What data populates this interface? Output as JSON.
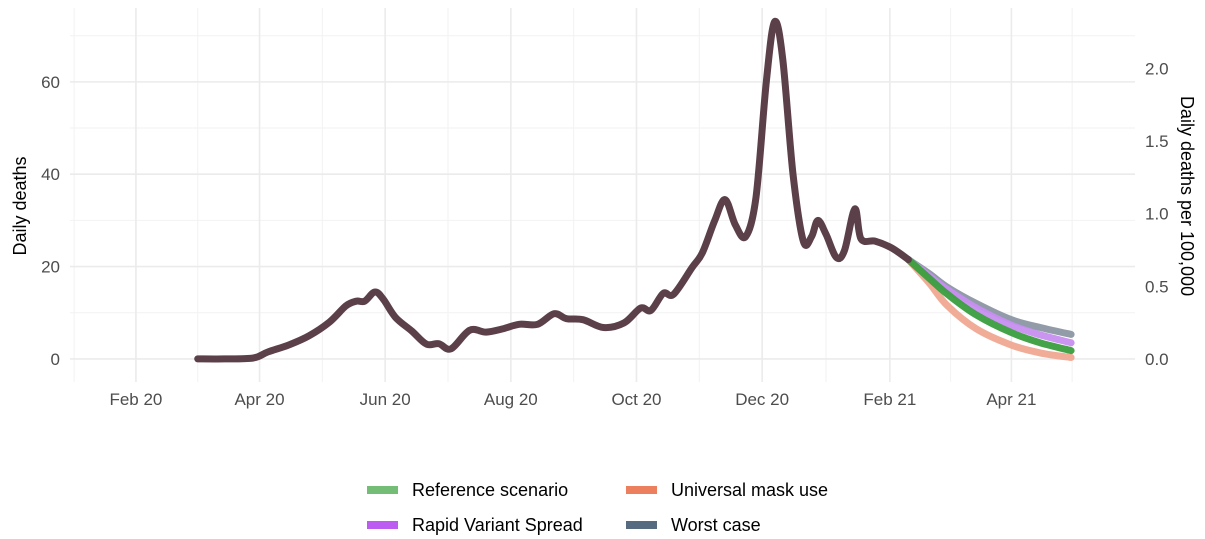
{
  "chart_data": {
    "type": "line",
    "xlabel": "",
    "ylabel": "Daily deaths",
    "y2label": "Daily deaths per 100,000",
    "ylim": [
      -5,
      76
    ],
    "y2_ratio": 31.45,
    "x_ticks": [
      {
        "date": "2020-02-01",
        "label": "Feb 20"
      },
      {
        "date": "2020-04-01",
        "label": "Apr 20"
      },
      {
        "date": "2020-06-01",
        "label": "Jun 20"
      },
      {
        "date": "2020-08-01",
        "label": "Aug 20"
      },
      {
        "date": "2020-10-01",
        "label": "Oct 20"
      },
      {
        "date": "2020-12-01",
        "label": "Dec 20"
      },
      {
        "date": "2021-02-01",
        "label": "Feb 21"
      },
      {
        "date": "2021-04-01",
        "label": "Apr 21"
      }
    ],
    "x_range": [
      "2019-12-31",
      "2021-05-31"
    ],
    "y_ticks": [
      0,
      20,
      40,
      60
    ],
    "y2_ticks": [
      {
        "value": 0.0,
        "label": "0.0"
      },
      {
        "value": 0.5,
        "label": "0.5"
      },
      {
        "value": 1.0,
        "label": "1.0"
      },
      {
        "value": 1.5,
        "label": "1.5"
      },
      {
        "value": 2.0,
        "label": "2.0"
      }
    ],
    "grid": true,
    "legend_position": "bottom",
    "history": {
      "color": "#5c4049",
      "points": [
        [
          "2020-03-02",
          0
        ],
        [
          "2020-03-15",
          0
        ],
        [
          "2020-03-29",
          0.2
        ],
        [
          "2020-04-05",
          1.5
        ],
        [
          "2020-04-15",
          3
        ],
        [
          "2020-04-25",
          5
        ],
        [
          "2020-05-05",
          8
        ],
        [
          "2020-05-13",
          11.5
        ],
        [
          "2020-05-18",
          12.5
        ],
        [
          "2020-05-22",
          12.5
        ],
        [
          "2020-05-27",
          14.5
        ],
        [
          "2020-05-31",
          13
        ],
        [
          "2020-06-06",
          9
        ],
        [
          "2020-06-14",
          6
        ],
        [
          "2020-06-21",
          3.2
        ],
        [
          "2020-06-27",
          3.3
        ],
        [
          "2020-07-03",
          2.2
        ],
        [
          "2020-07-12",
          6.2
        ],
        [
          "2020-07-20",
          5.8
        ],
        [
          "2020-07-28",
          6.5
        ],
        [
          "2020-08-05",
          7.5
        ],
        [
          "2020-08-14",
          7.5
        ],
        [
          "2020-08-22",
          9.8
        ],
        [
          "2020-08-28",
          8.7
        ],
        [
          "2020-09-05",
          8.5
        ],
        [
          "2020-09-15",
          6.8
        ],
        [
          "2020-09-25",
          7.8
        ],
        [
          "2020-10-03",
          11
        ],
        [
          "2020-10-08",
          10.5
        ],
        [
          "2020-10-14",
          14.2
        ],
        [
          "2020-10-19",
          14
        ],
        [
          "2020-10-28",
          19.8
        ],
        [
          "2020-11-02",
          23
        ],
        [
          "2020-11-08",
          30
        ],
        [
          "2020-11-13",
          34.5
        ],
        [
          "2020-11-18",
          29
        ],
        [
          "2020-11-23",
          26.5
        ],
        [
          "2020-11-28",
          35
        ],
        [
          "2020-12-03",
          60
        ],
        [
          "2020-12-07",
          73
        ],
        [
          "2020-12-11",
          65
        ],
        [
          "2020-12-16",
          40
        ],
        [
          "2020-12-21",
          25.5
        ],
        [
          "2020-12-25",
          26.5
        ],
        [
          "2020-12-28",
          30
        ],
        [
          "2021-01-01",
          27
        ],
        [
          "2021-01-06",
          22
        ],
        [
          "2021-01-10",
          23.5
        ],
        [
          "2021-01-15",
          32.5
        ],
        [
          "2021-01-18",
          26
        ],
        [
          "2021-01-25",
          25.5
        ],
        [
          "2021-02-02",
          24
        ],
        [
          "2021-02-10",
          21.5
        ]
      ]
    },
    "series": [
      {
        "name": "Reference scenario",
        "color": "#3a9e3e",
        "legend_color": "#74bd77",
        "points": [
          [
            "2021-02-10",
            21.5
          ],
          [
            "2021-02-20",
            17.5
          ],
          [
            "2021-03-01",
            14
          ],
          [
            "2021-03-15",
            9.5
          ],
          [
            "2021-04-01",
            5.7
          ],
          [
            "2021-04-15",
            3.5
          ],
          [
            "2021-04-30",
            1.8
          ]
        ]
      },
      {
        "name": "Rapid Variant Spread",
        "color": "#c78ef0",
        "legend_color": "#bc5cf0",
        "points": [
          [
            "2021-02-10",
            21.5
          ],
          [
            "2021-02-20",
            18
          ],
          [
            "2021-03-01",
            15
          ],
          [
            "2021-03-15",
            11
          ],
          [
            "2021-04-01",
            7.3
          ],
          [
            "2021-04-15",
            5.2
          ],
          [
            "2021-04-30",
            3.5
          ]
        ]
      },
      {
        "name": "Universal mask use",
        "color": "#f0a892",
        "legend_color": "#ec7f5e",
        "points": [
          [
            "2021-02-10",
            21.5
          ],
          [
            "2021-02-20",
            16.5
          ],
          [
            "2021-03-01",
            11.5
          ],
          [
            "2021-03-15",
            6.5
          ],
          [
            "2021-04-01",
            3
          ],
          [
            "2021-04-15",
            1.3
          ],
          [
            "2021-04-30",
            0.3
          ]
        ]
      },
      {
        "name": "Worst case",
        "color": "#8b97a3",
        "legend_color": "#566a80",
        "points": [
          [
            "2021-02-10",
            21.5
          ],
          [
            "2021-02-20",
            18.5
          ],
          [
            "2021-03-01",
            15.5
          ],
          [
            "2021-03-15",
            12
          ],
          [
            "2021-04-01",
            8.5
          ],
          [
            "2021-04-15",
            6.8
          ],
          [
            "2021-04-30",
            5.3
          ]
        ]
      }
    ]
  }
}
